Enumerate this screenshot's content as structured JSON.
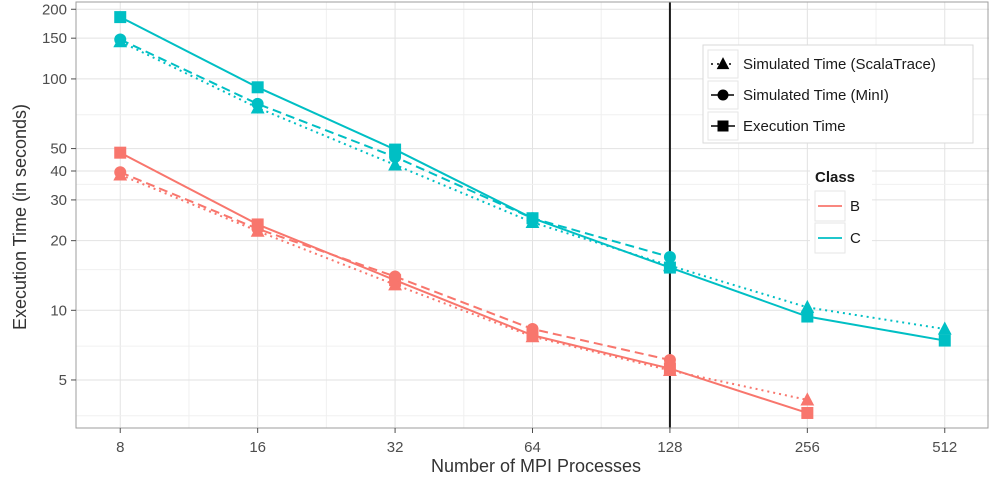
{
  "chart_data": {
    "type": "line",
    "title": "",
    "xlabel": "Number of MPI Processes",
    "ylabel": "Execution Time (in seconds)",
    "x_scale": "log2",
    "y_scale": "log",
    "x_ticks": [
      8,
      16,
      32,
      64,
      128,
      256,
      512
    ],
    "x_tick_labels": [
      "8",
      "16",
      "32",
      "64",
      "128",
      "256",
      "512"
    ],
    "y_ticks": [
      5,
      10,
      20,
      30,
      40,
      50,
      100,
      150,
      200
    ],
    "y_tick_labels": [
      "5",
      "10",
      "20",
      "30",
      "40",
      "50",
      "100",
      "150",
      "200"
    ],
    "xlim": [
      6.4,
      640
    ],
    "ylim": [
      3.1,
      215
    ],
    "grid": true,
    "vertical_line_x": 128,
    "linetype_legend": {
      "entries": [
        "Simulated Time (ScalaTrace)",
        "Simulated Time (MinI)",
        "Execution Time"
      ],
      "shapes": [
        "triangle",
        "circle",
        "square"
      ],
      "placement": "top-right"
    },
    "color_legend": {
      "title": "Class",
      "entries": [
        "B",
        "C"
      ],
      "placement": "right"
    },
    "colors": {
      "B": "#F8766D",
      "C": "#00BFC4"
    },
    "series": [
      {
        "class": "B",
        "kind": "Execution Time",
        "shape": "square",
        "line": "solid",
        "x": [
          8,
          16,
          32,
          64,
          128,
          256
        ],
        "y": [
          48,
          23.5,
          13.5,
          7.8,
          5.6,
          3.6
        ]
      },
      {
        "class": "B",
        "kind": "Simulated Time (MinI)",
        "shape": "circle",
        "line": "dashed",
        "x": [
          8,
          16,
          32,
          64,
          128
        ],
        "y": [
          39.5,
          22.5,
          14,
          8.3,
          6.1
        ]
      },
      {
        "class": "B",
        "kind": "Simulated Time (ScalaTrace)",
        "shape": "triangle",
        "line": "dotted",
        "x": [
          8,
          16,
          32,
          64,
          128,
          256
        ],
        "y": [
          38.5,
          22,
          12.9,
          7.7,
          5.5,
          4.1
        ]
      },
      {
        "class": "C",
        "kind": "Execution Time",
        "shape": "square",
        "line": "solid",
        "x": [
          8,
          16,
          32,
          64,
          128,
          256,
          512
        ],
        "y": [
          185,
          92,
          49.5,
          25,
          15.3,
          9.4,
          7.4
        ]
      },
      {
        "class": "C",
        "kind": "Simulated Time (MinI)",
        "shape": "circle",
        "line": "dashed",
        "x": [
          8,
          16,
          32,
          64,
          128
        ],
        "y": [
          148,
          78,
          46,
          25,
          17
        ]
      },
      {
        "class": "C",
        "kind": "Simulated Time (ScalaTrace)",
        "shape": "triangle",
        "line": "dotted",
        "x": [
          8,
          16,
          32,
          64,
          128,
          256,
          512
        ],
        "y": [
          145,
          75,
          42.5,
          24,
          15.6,
          10.3,
          8.3
        ]
      }
    ]
  }
}
